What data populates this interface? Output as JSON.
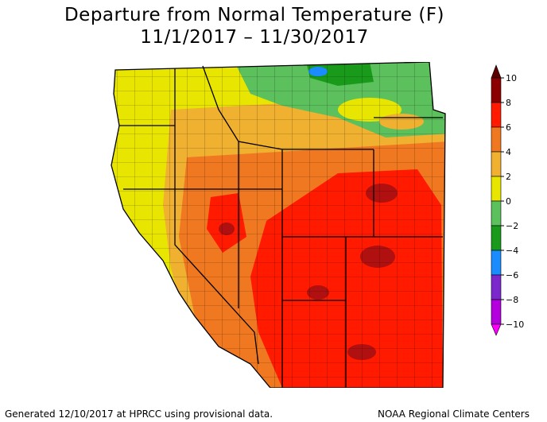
{
  "title": {
    "line1": "Departure from Normal Temperature (F)",
    "line2": "11/1/2017 – 11/30/2017"
  },
  "legend": {
    "ticks": [
      "10",
      "8",
      "6",
      "4",
      "2",
      "0",
      "−2",
      "−4",
      "−6",
      "−8",
      "−10"
    ],
    "bands": [
      {
        "range": "8 to 10",
        "color": "#8b0000"
      },
      {
        "range": "6 to 8",
        "color": "#ff1a00"
      },
      {
        "range": "4 to 6",
        "color": "#f07820"
      },
      {
        "range": "2 to 4",
        "color": "#f0b030"
      },
      {
        "range": "0 to 2",
        "color": "#e8e600"
      },
      {
        "range": "-2 to 0",
        "color": "#5cc05c"
      },
      {
        "range": "-4 to -2",
        "color": "#1a9a1a"
      },
      {
        "range": "-6 to -4",
        "color": "#1a8cff"
      },
      {
        "range": "-8 to -6",
        "color": "#7a28cc"
      },
      {
        "range": "-10 to -8",
        "color": "#b400dc"
      }
    ]
  },
  "footer": {
    "left": "Generated 12/10/2017 at HPRCC using provisional data.",
    "right": "NOAA Regional Climate Centers"
  }
}
